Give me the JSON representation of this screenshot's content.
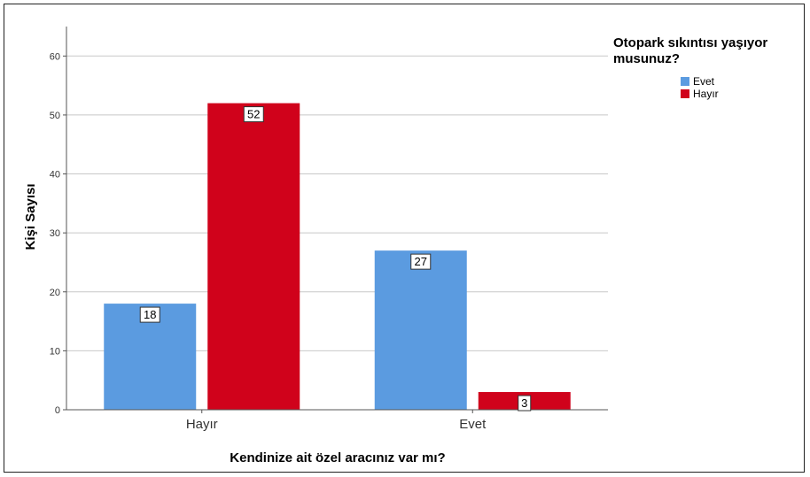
{
  "chart_data": {
    "type": "bar",
    "xlabel": "Kendinize ait özel aracınız var mı?",
    "ylabel": "Kişi Sayısı",
    "categories": [
      "Hayır",
      "Evet"
    ],
    "ylim": [
      0,
      65
    ],
    "yticks": [
      0,
      10,
      20,
      30,
      40,
      50,
      60
    ],
    "grid": true,
    "legend": {
      "title": "Otopark sıkıntısı yaşıyor musunuz?",
      "title_lines": [
        "Otopark sıkıntısı yaşıyor",
        "musunuz?"
      ],
      "placement": "top-right"
    },
    "series": [
      {
        "name": "Evet",
        "color": "#5B9BE0",
        "values": [
          18,
          27
        ]
      },
      {
        "name": "Hayır",
        "color": "#D0021B",
        "values": [
          52,
          3
        ]
      }
    ]
  }
}
